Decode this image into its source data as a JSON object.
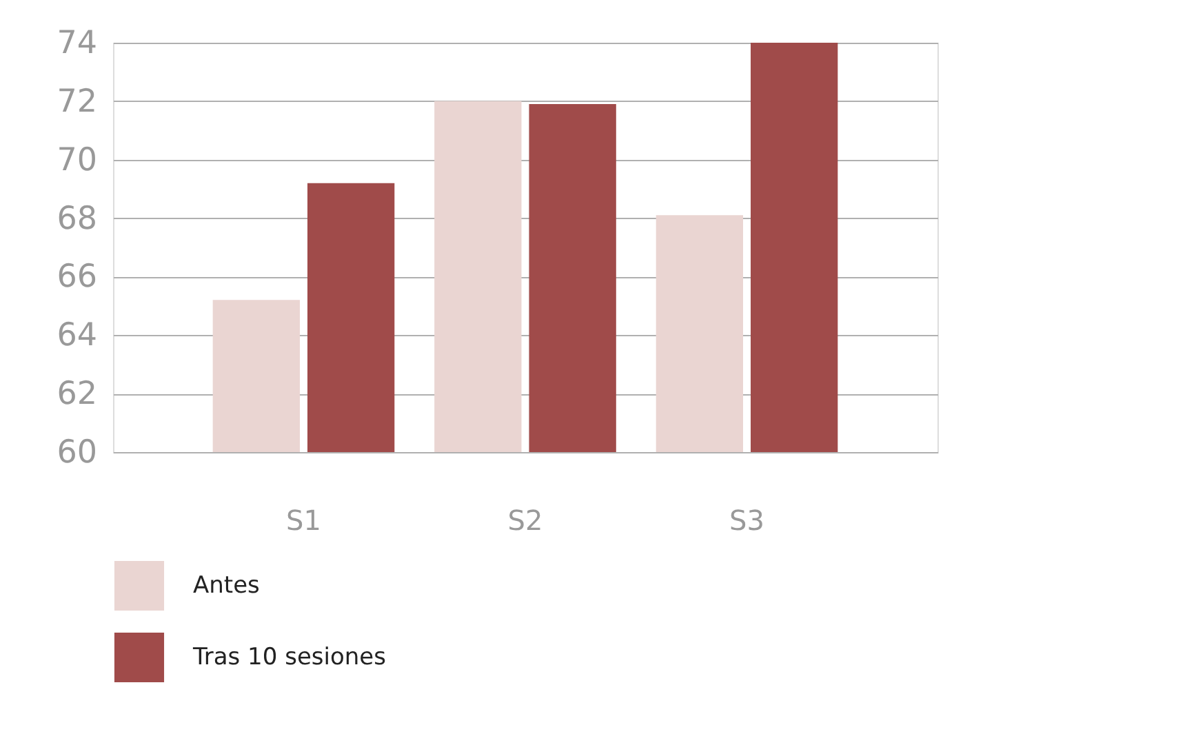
{
  "chart_data": {
    "type": "bar",
    "categories": [
      "S1",
      "S2",
      "S3"
    ],
    "series": [
      {
        "name": "Antes",
        "color": "#ead5d2",
        "values": [
          65.2,
          72.0,
          68.1
        ]
      },
      {
        "name": "Tras 10 sesiones",
        "color": "#a04b4a",
        "values": [
          69.2,
          71.9,
          74.0
        ]
      }
    ],
    "ylim": [
      60,
      74
    ],
    "yticks": [
      60,
      62,
      64,
      66,
      68,
      70,
      72,
      74
    ],
    "grid": "y",
    "legend": "bottom"
  }
}
